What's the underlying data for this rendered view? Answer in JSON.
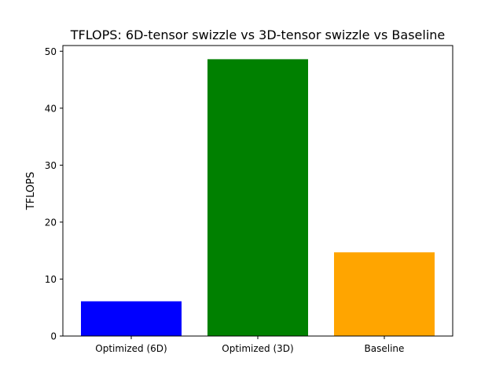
{
  "chart_data": {
    "type": "bar",
    "title": "TFLOPS: 6D-tensor swizzle vs 3D-tensor swizzle vs Baseline",
    "xlabel": "",
    "ylabel": "TFLOPS",
    "categories": [
      "Optimized (6D)",
      "Optimized (3D)",
      "Baseline"
    ],
    "values": [
      6.1,
      48.6,
      14.7
    ],
    "colors": [
      "#0000ff",
      "#008000",
      "#ffa500"
    ],
    "ylim": [
      0,
      51
    ],
    "yticks": [
      0,
      10,
      20,
      30,
      40,
      50
    ],
    "ytick_labels": [
      "0",
      "10",
      "20",
      "30",
      "40",
      "50"
    ],
    "grid": false,
    "legend": "none"
  }
}
